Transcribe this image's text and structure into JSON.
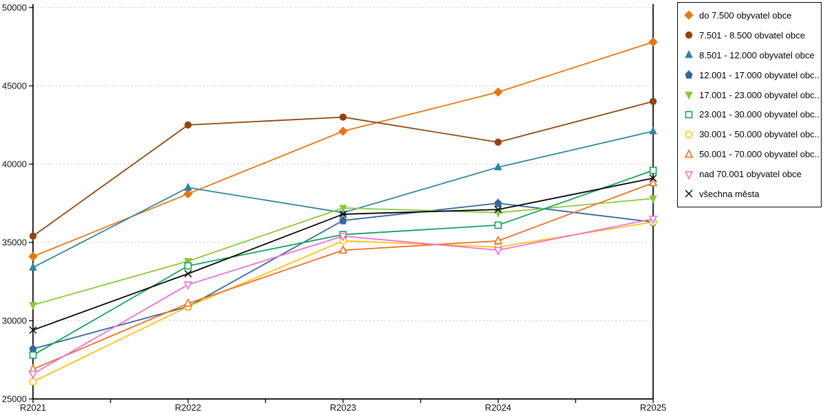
{
  "chart_data": {
    "type": "line",
    "title": "",
    "xlabel": "",
    "ylabel": "",
    "categories": [
      "R2021",
      "R2022",
      "R2023",
      "R2024",
      "R2025"
    ],
    "ylim": [
      25000,
      50000
    ],
    "ytick_step": 5000,
    "yticks": [
      "25000",
      "30000",
      "35000",
      "40000",
      "45000",
      "50000"
    ],
    "grid": "horizontal-dashed-light-gray",
    "legend_position": "top-right",
    "series": [
      {
        "name": "do 7.500 obyvatel obce",
        "color": "#E8750F",
        "marker": "diamond",
        "filled": true,
        "values": [
          34100,
          38100,
          42100,
          44600,
          47800
        ]
      },
      {
        "name": "7.501 - 8.500 obvatel obce",
        "color": "#8F450E",
        "marker": "circle",
        "filled": true,
        "values": [
          35400,
          42500,
          43000,
          41400,
          44000
        ]
      },
      {
        "name": "8.501 - 12.000 obyvatel obce",
        "color": "#31859C",
        "marker": "triangle-up",
        "filled": true,
        "values": [
          33400,
          38500,
          36900,
          39800,
          42100
        ]
      },
      {
        "name": "12.001 - 17.000 obyvatel obc...",
        "color": "#35679A",
        "marker": "pentagon",
        "filled": true,
        "values": [
          28200,
          30900,
          36400,
          37500,
          36300
        ]
      },
      {
        "name": "17.001 - 23.000 obyvatel obc...",
        "color": "#8CC63E",
        "marker": "triangle-down",
        "filled": true,
        "values": [
          31000,
          33800,
          37200,
          36900,
          37800
        ]
      },
      {
        "name": "23.001 - 30.000 obyvatel obc...",
        "color": "#0EA455",
        "marker": "square",
        "filled": false,
        "values": [
          27800,
          33500,
          35500,
          36100,
          39600
        ]
      },
      {
        "name": "30.001 - 50.000 obyvatel obc...",
        "color": "#FFC20E",
        "marker": "circle",
        "filled": false,
        "values": [
          26100,
          30900,
          35100,
          34700,
          36300
        ]
      },
      {
        "name": "50.001 - 70.000 obyvatel obc...",
        "color": "#F26D21",
        "marker": "triangle-up",
        "filled": false,
        "values": [
          26900,
          31100,
          34500,
          35100,
          38800
        ]
      },
      {
        "name": "nad 70.001 obyvatel obce",
        "color": "#F06EDC",
        "marker": "triangle-down",
        "filled": false,
        "values": [
          26600,
          32300,
          35400,
          34500,
          36500
        ]
      },
      {
        "name": "všechna města",
        "color": "#000000",
        "marker": "x",
        "filled": false,
        "values": [
          29400,
          33000,
          36800,
          37100,
          39100
        ]
      }
    ]
  }
}
